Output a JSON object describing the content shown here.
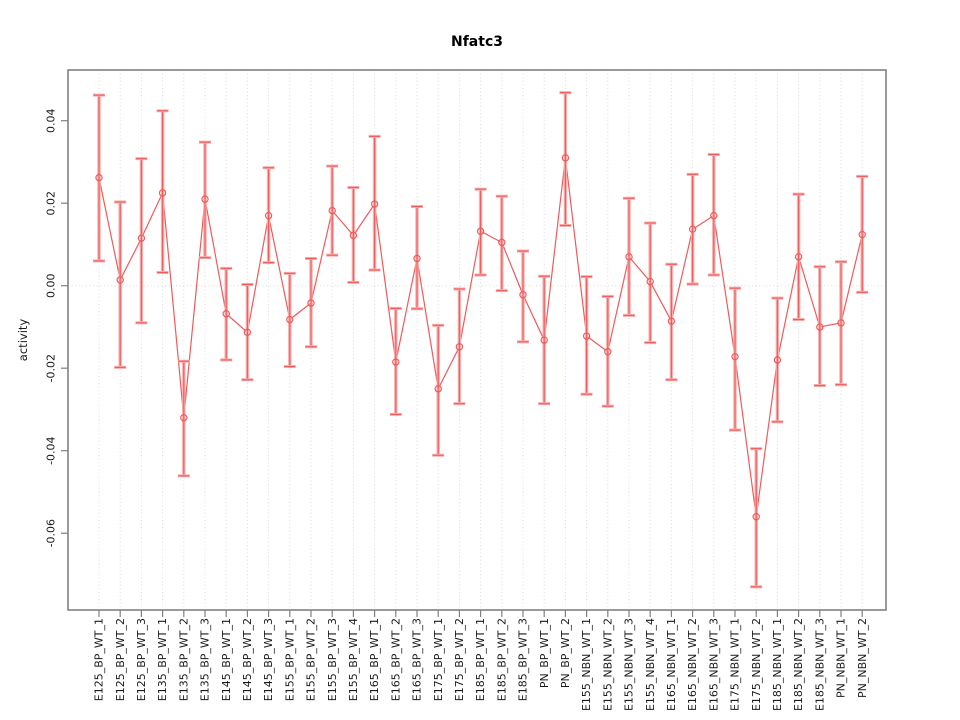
{
  "page": {
    "background": "#ffffff"
  },
  "chart_data": {
    "type": "line",
    "title": "Nfatc3",
    "xlabel": "",
    "ylabel": "activity",
    "legend": "none",
    "grid": "vertical dotted gridline per category, dotted horizontal line at y=0",
    "marker": "open-circle",
    "error_bars": true,
    "ylim": [
      -0.0786,
      0.0523
    ],
    "y_ticks": {
      "values": [
        0.04,
        0.02,
        0.0,
        -0.02,
        -0.04,
        -0.06
      ],
      "labels": [
        "0.04",
        "0.02",
        "0.00",
        "-0.02",
        "-0.04",
        "-0.06"
      ]
    },
    "categories": [
      "E125_BP_WT_1",
      "E125_BP_WT_2",
      "E125_BP_WT_3",
      "E135_BP_WT_1",
      "E135_BP_WT_2",
      "E135_BP_WT_3",
      "E145_BP_WT_1",
      "E145_BP_WT_2",
      "E145_BP_WT_3",
      "E155_BP_WT_1",
      "E155_BP_WT_2",
      "E155_BP_WT_3",
      "E155_BP_WT_4",
      "E165_BP_WT_1",
      "E165_BP_WT_2",
      "E165_BP_WT_3",
      "E175_BP_WT_1",
      "E175_BP_WT_2",
      "E185_BP_WT_1",
      "E185_BP_WT_2",
      "E185_BP_WT_3",
      "PN_BP_WT_1",
      "PN_BP_WT_2",
      "E155_NBN_WT_1",
      "E155_NBN_WT_2",
      "E155_NBN_WT_3",
      "E155_NBN_WT_4",
      "E165_NBN_WT_1",
      "E165_NBN_WT_2",
      "E165_NBN_WT_3",
      "E175_NBN_WT_1",
      "E175_NBN_WT_2",
      "E185_NBN_WT_1",
      "E185_NBN_WT_2",
      "E185_NBN_WT_3",
      "PN_NBN_WT_1",
      "PN_NBN_WT_2"
    ],
    "series": [
      {
        "name": "activity",
        "values": [
          0.0262,
          0.0014,
          0.0115,
          0.0225,
          -0.032,
          0.021,
          -0.0068,
          -0.0113,
          0.017,
          -0.0082,
          -0.0042,
          0.0182,
          0.0122,
          0.0198,
          -0.0185,
          0.0066,
          -0.025,
          -0.0148,
          0.0132,
          0.0105,
          -0.0022,
          -0.0132,
          0.031,
          -0.0122,
          -0.016,
          0.007,
          0.001,
          -0.0086,
          0.0137,
          0.017,
          -0.0172,
          -0.056,
          -0.018,
          0.007,
          -0.01,
          -0.009,
          0.0124
        ],
        "error_low": [
          0.006,
          -0.0198,
          -0.009,
          0.0032,
          -0.0461,
          0.0068,
          -0.018,
          -0.0228,
          0.0056,
          -0.0196,
          -0.0148,
          0.0074,
          0.0008,
          0.0038,
          -0.0312,
          -0.0056,
          -0.0411,
          -0.0286,
          0.0026,
          -0.0012,
          -0.0136,
          -0.0286,
          0.0146,
          -0.0263,
          -0.0292,
          -0.0072,
          -0.0138,
          -0.0228,
          0.0004,
          0.0026,
          -0.035,
          -0.073,
          -0.033,
          -0.0082,
          -0.0242,
          -0.024,
          -0.0016
        ],
        "error_high": [
          0.0462,
          0.0203,
          0.0308,
          0.0424,
          -0.0183,
          0.0348,
          0.0042,
          0.0003,
          0.0286,
          0.003,
          0.0066,
          0.029,
          0.0238,
          0.0362,
          -0.0055,
          0.0192,
          -0.0096,
          -0.0008,
          0.0234,
          0.0217,
          0.0084,
          0.0023,
          0.0468,
          0.0022,
          -0.0026,
          0.0212,
          0.0152,
          0.0052,
          0.027,
          0.0318,
          -0.0006,
          -0.0395,
          -0.003,
          0.0222,
          0.0046,
          0.0058,
          0.0265
        ]
      }
    ],
    "colors": {
      "series": "#ef5a5a",
      "series_soft": "#f9adad",
      "grid": "#dadada",
      "axis": "#808080",
      "text": "#1a1a1a"
    }
  }
}
